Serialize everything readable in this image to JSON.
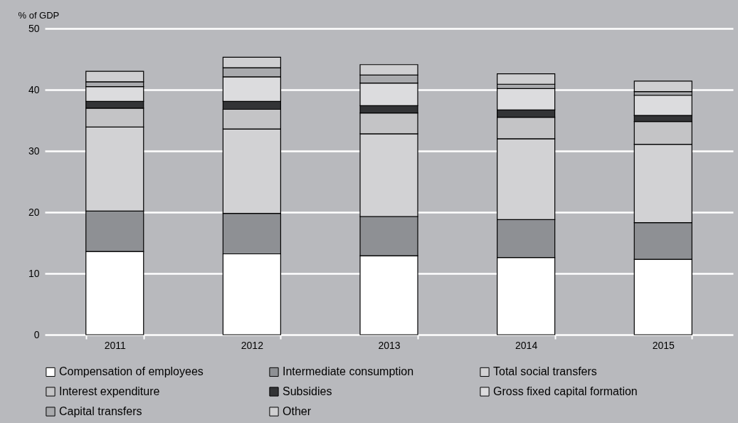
{
  "chart_data": {
    "type": "bar",
    "stacked": true,
    "ylabel": "% of GDP",
    "categories": [
      "2011",
      "2012",
      "2013",
      "2014",
      "2015"
    ],
    "series": [
      {
        "name": "Compensation of employees",
        "color": "#ffffff",
        "values": [
          13.6,
          13.2,
          12.9,
          12.6,
          12.3
        ]
      },
      {
        "name": "Intermediate consumption",
        "color": "#8e9094",
        "values": [
          6.6,
          6.6,
          6.4,
          6.2,
          6.0
        ]
      },
      {
        "name": "Total social transfers",
        "color": "#d2d2d4",
        "values": [
          13.7,
          13.8,
          13.5,
          13.2,
          12.8
        ]
      },
      {
        "name": "Interest expenditure",
        "color": "#c4c4c6",
        "values": [
          3.1,
          3.2,
          3.4,
          3.5,
          3.7
        ]
      },
      {
        "name": "Subsidies",
        "color": "#333436",
        "values": [
          1.1,
          1.3,
          1.2,
          1.2,
          1.0
        ]
      },
      {
        "name": "Gross fixed capital formation",
        "color": "#dcdcde",
        "values": [
          2.4,
          4.0,
          3.7,
          3.5,
          3.3
        ]
      },
      {
        "name": "Capital transfers",
        "color": "#a9aaad",
        "values": [
          0.8,
          1.5,
          1.3,
          0.7,
          0.6
        ]
      },
      {
        "name": "Other",
        "color": "#cfcfd1",
        "values": [
          1.7,
          1.7,
          1.7,
          1.7,
          1.7
        ]
      }
    ],
    "ylim": [
      0,
      50
    ],
    "yticks": [
      0,
      10,
      20,
      30,
      40,
      50
    ],
    "grid": "y",
    "legend": "bottom"
  }
}
